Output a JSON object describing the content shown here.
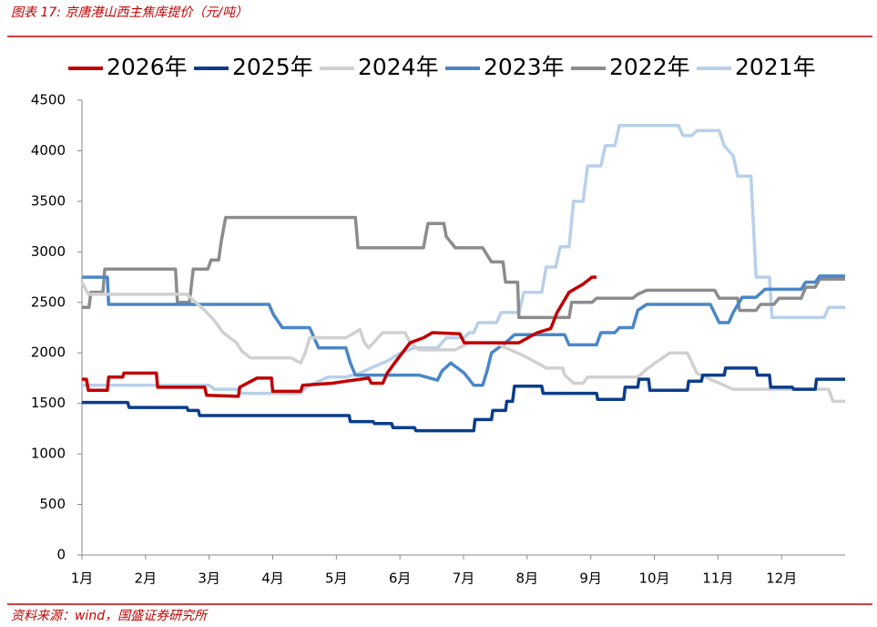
{
  "chart_data": {
    "type": "line",
    "title": "图表 17:  京唐港山西主焦库提价（元/吨）",
    "source": "资料来源：wind，国盛证券研究所",
    "xlim": [
      1,
      13
    ],
    "ylim": [
      0,
      4500
    ],
    "yticks": [
      0,
      500,
      1000,
      1500,
      2000,
      2500,
      3000,
      3500,
      4000,
      4500
    ],
    "xticks": [
      {
        "value": 1,
        "label": "1月"
      },
      {
        "value": 2,
        "label": "2月"
      },
      {
        "value": 3,
        "label": "3月"
      },
      {
        "value": 4,
        "label": "4月"
      },
      {
        "value": 5,
        "label": "5月"
      },
      {
        "value": 6,
        "label": "6月"
      },
      {
        "value": 7,
        "label": "7月"
      },
      {
        "value": 8,
        "label": "8月"
      },
      {
        "value": 9,
        "label": "9月"
      },
      {
        "value": 10,
        "label": "10月"
      },
      {
        "value": 11,
        "label": "11月"
      },
      {
        "value": 12,
        "label": "12月"
      }
    ],
    "grid": false,
    "legend": "top",
    "series": [
      {
        "name": "2026年",
        "color": "#c00000",
        "x": [
          1,
          1.07,
          1.1,
          1.4,
          1.42,
          1.64,
          1.66,
          2.17,
          2.19,
          2.93,
          2.96,
          3.46,
          3.48,
          3.75,
          3.78,
          3.98,
          4.0,
          4.44,
          4.47,
          4.94,
          5.15,
          5.51,
          5.55,
          5.73,
          5.8,
          5.94,
          6.16,
          6.37,
          6.51,
          6.94,
          7.01,
          7.73,
          7.87,
          8.16,
          8.37,
          8.47,
          8.66,
          8.88,
          9.02,
          9.09
        ],
        "values": [
          1740,
          1740,
          1630,
          1630,
          1760,
          1760,
          1800,
          1800,
          1660,
          1660,
          1580,
          1570,
          1660,
          1750,
          1750,
          1750,
          1620,
          1620,
          1680,
          1700,
          1720,
          1750,
          1700,
          1700,
          1800,
          1920,
          2100,
          2150,
          2200,
          2190,
          2100,
          2100,
          2100,
          2200,
          2240,
          2400,
          2600,
          2680,
          2750,
          2750
        ]
      },
      {
        "name": "2025年",
        "color": "#0b3d8c",
        "x": [
          1,
          1.72,
          1.74,
          2.65,
          2.67,
          2.83,
          2.85,
          5.2,
          5.22,
          5.58,
          5.6,
          5.87,
          5.89,
          6.23,
          6.25,
          7.16,
          7.18,
          7.44,
          7.46,
          7.66,
          7.68,
          7.77,
          7.8,
          8.23,
          8.25,
          9.09,
          9.11,
          9.52,
          9.54,
          9.74,
          9.76,
          9.91,
          9.93,
          10.52,
          10.54,
          10.74,
          10.76,
          11.1,
          11.12,
          11.6,
          11.62,
          11.81,
          11.83,
          12.17,
          12.19,
          12.53,
          12.55,
          13
        ],
        "values": [
          1510,
          1510,
          1460,
          1460,
          1430,
          1430,
          1380,
          1380,
          1320,
          1320,
          1300,
          1300,
          1260,
          1260,
          1230,
          1230,
          1340,
          1340,
          1430,
          1430,
          1520,
          1520,
          1670,
          1670,
          1600,
          1600,
          1540,
          1540,
          1660,
          1660,
          1740,
          1740,
          1630,
          1630,
          1720,
          1720,
          1780,
          1780,
          1850,
          1850,
          1780,
          1780,
          1660,
          1660,
          1640,
          1640,
          1740,
          1740
        ]
      },
      {
        "name": "2024年",
        "color": "#d0d0d0",
        "x": [
          1,
          1.1,
          2.65,
          2.79,
          2.93,
          3.08,
          3.22,
          3.43,
          3.51,
          3.65,
          4.29,
          4.44,
          4.51,
          4.58,
          5.15,
          5.37,
          5.44,
          5.51,
          5.73,
          6.08,
          6.16,
          6.3,
          6.87,
          7.09,
          7.52,
          7.66,
          7.95,
          8.16,
          8.3,
          8.56,
          8.59,
          8.73,
          8.88,
          8.95,
          9.74,
          9.88,
          10.24,
          10.52,
          10.67,
          10.95,
          11.24,
          12.74,
          12.81,
          13
        ],
        "values": [
          2700,
          2580,
          2580,
          2500,
          2420,
          2320,
          2200,
          2100,
          2020,
          1950,
          1950,
          1900,
          2000,
          2150,
          2150,
          2230,
          2100,
          2050,
          2200,
          2200,
          2100,
          2030,
          2030,
          2100,
          2100,
          2050,
          1970,
          1900,
          1850,
          1850,
          1780,
          1700,
          1700,
          1760,
          1760,
          1840,
          2000,
          2000,
          1800,
          1720,
          1640,
          1640,
          1520,
          1520
        ]
      },
      {
        "name": "2023年",
        "color": "#4a86c8",
        "x": [
          1,
          1.4,
          1.42,
          3.94,
          4.01,
          4.15,
          4.58,
          4.65,
          4.72,
          5.15,
          5.22,
          5.3,
          6.3,
          6.59,
          6.66,
          6.8,
          7.01,
          7.16,
          7.3,
          7.37,
          7.44,
          7.66,
          7.8,
          8.59,
          8.66,
          9.09,
          9.16,
          9.38,
          9.45,
          9.66,
          9.74,
          9.88,
          10.88,
          11.02,
          11.17,
          11.24,
          11.38,
          11.6,
          11.74,
          12.31,
          12.38,
          12.53,
          12.6,
          13
        ],
        "values": [
          2750,
          2750,
          2480,
          2480,
          2380,
          2250,
          2250,
          2150,
          2050,
          2050,
          1900,
          1780,
          1780,
          1730,
          1820,
          1900,
          1800,
          1680,
          1680,
          1820,
          2000,
          2100,
          2180,
          2180,
          2080,
          2080,
          2200,
          2200,
          2250,
          2250,
          2420,
          2480,
          2480,
          2300,
          2300,
          2400,
          2550,
          2550,
          2630,
          2630,
          2700,
          2700,
          2760,
          2760
        ]
      },
      {
        "name": "2022年",
        "color": "#8c8c8c",
        "x": [
          1,
          1.11,
          1.14,
          1.33,
          1.36,
          2.47,
          2.5,
          2.69,
          2.75,
          2.98,
          3.03,
          3.15,
          3.19,
          3.26,
          5.3,
          5.34,
          6.37,
          6.44,
          6.69,
          6.73,
          6.87,
          7.3,
          7.44,
          7.62,
          7.66,
          7.85,
          7.87,
          8.66,
          8.7,
          9.02,
          9.09,
          9.66,
          9.74,
          9.88,
          10.95,
          11.02,
          11.31,
          11.34,
          11.6,
          11.67,
          11.88,
          11.96,
          12.31,
          12.38,
          12.53,
          12.6,
          13
        ],
        "values": [
          2450,
          2450,
          2600,
          2600,
          2830,
          2830,
          2500,
          2500,
          2830,
          2830,
          2920,
          2920,
          3100,
          3340,
          3340,
          3040,
          3040,
          3280,
          3280,
          3150,
          3040,
          3040,
          2900,
          2900,
          2700,
          2700,
          2350,
          2350,
          2500,
          2500,
          2540,
          2540,
          2580,
          2620,
          2620,
          2540,
          2540,
          2420,
          2420,
          2480,
          2480,
          2540,
          2540,
          2650,
          2650,
          2730,
          2730
        ]
      },
      {
        "name": "2021年",
        "color": "#b8d0ea",
        "x": [
          1,
          3.0,
          3.08,
          3.43,
          3.51,
          4.44,
          4.51,
          4.65,
          4.87,
          5.15,
          5.37,
          5.58,
          5.8,
          6.01,
          6.23,
          6.59,
          6.73,
          7.01,
          7.09,
          7.16,
          7.23,
          7.52,
          7.59,
          7.87,
          7.95,
          8.23,
          8.3,
          8.45,
          8.52,
          8.66,
          8.73,
          8.88,
          8.95,
          9.16,
          9.23,
          9.38,
          9.45,
          10.38,
          10.45,
          10.59,
          10.67,
          11.02,
          11.1,
          11.24,
          11.31,
          11.52,
          11.6,
          11.81,
          11.85,
          12.67,
          12.74,
          13
        ],
        "values": [
          1680,
          1680,
          1640,
          1640,
          1600,
          1600,
          1650,
          1700,
          1760,
          1760,
          1800,
          1860,
          1920,
          2000,
          2050,
          2050,
          2150,
          2150,
          2200,
          2200,
          2300,
          2300,
          2400,
          2400,
          2600,
          2600,
          2850,
          2850,
          3050,
          3050,
          3500,
          3500,
          3850,
          3850,
          4050,
          4050,
          4250,
          4250,
          4150,
          4150,
          4200,
          4200,
          4050,
          3950,
          3750,
          3750,
          2750,
          2750,
          2350,
          2350,
          2450,
          2450
        ]
      }
    ]
  }
}
